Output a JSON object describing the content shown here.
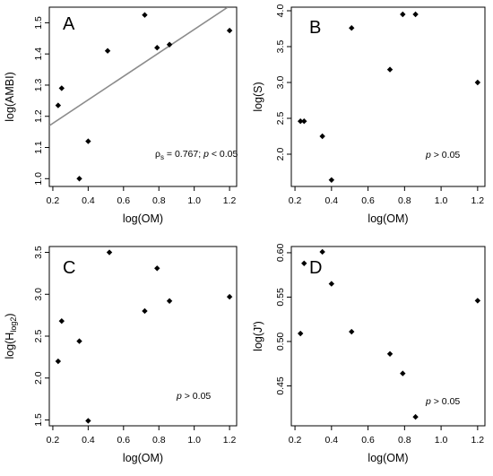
{
  "chart_data": [
    {
      "type": "scatter",
      "panel_label": "A",
      "xlabel": "log(OM)",
      "ylabel": "log(AMBI)",
      "xlim": [
        0.18,
        1.24
      ],
      "ylim": [
        0.975,
        1.55
      ],
      "xticks": [
        0.2,
        0.4,
        0.6,
        0.8,
        1.0,
        1.2
      ],
      "yticks": [
        1.0,
        1.1,
        1.2,
        1.3,
        1.4,
        1.5
      ],
      "x": [
        0.23,
        0.25,
        0.35,
        0.4,
        0.51,
        0.72,
        0.79,
        0.86,
        1.2
      ],
      "y": [
        1.235,
        1.29,
        1.0,
        1.12,
        1.41,
        1.525,
        1.42,
        1.43,
        1.475
      ],
      "regression_line": {
        "x": [
          0.18,
          1.19
        ],
        "y": [
          1.17,
          1.55
        ]
      },
      "annotation": {
        "rho_symbol": "ρ",
        "rho_sub": "s",
        "text": " = 0.767; ",
        "p": "p",
        "p_text": " < 0.05"
      }
    },
    {
      "type": "scatter",
      "panel_label": "B",
      "xlabel": "log(OM)",
      "ylabel": "log(S)",
      "xlim": [
        0.18,
        1.24
      ],
      "ylim": [
        1.55,
        4.05
      ],
      "xticks": [
        0.2,
        0.4,
        0.6,
        0.8,
        1.0,
        1.2
      ],
      "yticks": [
        2.0,
        2.5,
        3.0,
        3.5,
        4.0
      ],
      "x": [
        0.23,
        0.25,
        0.35,
        0.4,
        0.51,
        0.72,
        0.79,
        0.86,
        1.2
      ],
      "y": [
        2.46,
        2.46,
        2.25,
        1.64,
        3.76,
        3.18,
        3.95,
        3.95,
        3.0
      ],
      "annotation": {
        "p": "p",
        "p_text": " > 0.05"
      }
    },
    {
      "type": "scatter",
      "panel_label": "C",
      "xlabel": "log(OM)",
      "ylabel": "log(H",
      "ylabel_sub": "log2",
      "ylabel_end": ")",
      "xlim": [
        0.18,
        1.24
      ],
      "ylim": [
        1.43,
        3.57
      ],
      "xticks": [
        0.2,
        0.4,
        0.6,
        0.8,
        1.0,
        1.2
      ],
      "yticks": [
        1.5,
        2.0,
        2.5,
        3.0,
        3.5
      ],
      "x": [
        0.23,
        0.25,
        0.35,
        0.4,
        0.52,
        0.72,
        0.79,
        0.86,
        1.2
      ],
      "y": [
        2.2,
        2.68,
        2.44,
        1.49,
        3.5,
        2.8,
        3.31,
        2.92,
        2.97
      ],
      "annotation": {
        "p": "p",
        "p_text": " > 0.05"
      }
    },
    {
      "type": "scatter",
      "panel_label": "D",
      "xlabel": "log(OM)",
      "ylabel": "log(J')",
      "xlim": [
        0.18,
        1.24
      ],
      "ylim": [
        0.405,
        0.607
      ],
      "xticks": [
        0.2,
        0.4,
        0.6,
        0.8,
        1.0,
        1.2
      ],
      "yticks": [
        0.45,
        0.5,
        0.55,
        0.6
      ],
      "x": [
        0.23,
        0.25,
        0.35,
        0.4,
        0.51,
        0.72,
        0.79,
        0.86,
        1.2
      ],
      "y": [
        0.509,
        0.588,
        0.601,
        0.565,
        0.511,
        0.486,
        0.464,
        0.415,
        0.546
      ],
      "annotation": {
        "p": "p",
        "p_text": " > 0.05"
      }
    }
  ]
}
